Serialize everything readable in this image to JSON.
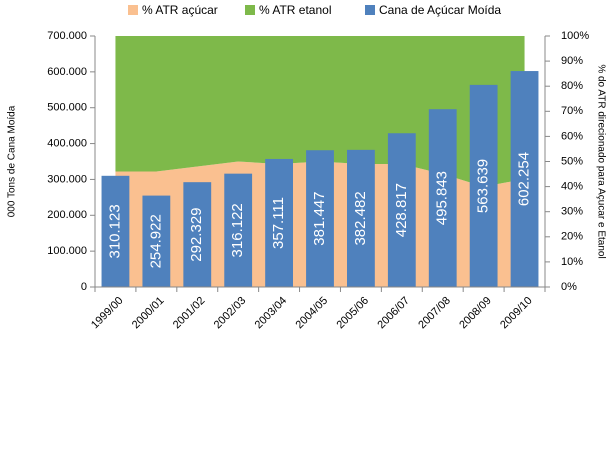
{
  "chart_data": {
    "type": "combo",
    "categories": [
      "1999/00",
      "2000/01",
      "2001/02",
      "2002/03",
      "2003/04",
      "2004/05",
      "2005/06",
      "2006/07",
      "2007/08",
      "2008/09",
      "2009/10"
    ],
    "y_label": "000 Tons de Cana Moída",
    "y2_label": "% do ATR direcionado para  Açucar e Etanol",
    "ylim": [
      0,
      700000
    ],
    "yticks": [
      {
        "value": 0,
        "label": "0"
      },
      {
        "value": 100000,
        "label": "100.000"
      },
      {
        "value": 200000,
        "label": "200.000"
      },
      {
        "value": 300000,
        "label": "300.000"
      },
      {
        "value": 400000,
        "label": "400.000"
      },
      {
        "value": 500000,
        "label": "500.000"
      },
      {
        "value": 600000,
        "label": "600.000"
      },
      {
        "value": 700000,
        "label": "700.000"
      }
    ],
    "y2lim": [
      0,
      100
    ],
    "y2ticks": [
      {
        "value": 0,
        "label": "0%"
      },
      {
        "value": 10,
        "label": "10%"
      },
      {
        "value": 20,
        "label": "20%"
      },
      {
        "value": 30,
        "label": "30%"
      },
      {
        "value": 40,
        "label": "40%"
      },
      {
        "value": 50,
        "label": "50%"
      },
      {
        "value": 60,
        "label": "60%"
      },
      {
        "value": 70,
        "label": "70%"
      },
      {
        "value": 80,
        "label": "80%"
      },
      {
        "value": 90,
        "label": "90%"
      },
      {
        "value": 100,
        "label": "100%"
      }
    ],
    "series": [
      {
        "name": "% ATR açúcar",
        "type": "area",
        "axis": "y2",
        "color": "#fac090",
        "values": [
          46,
          46,
          48,
          50,
          49,
          50,
          49,
          49,
          45,
          40,
          43
        ]
      },
      {
        "name": "% ATR etanol",
        "type": "area",
        "axis": "y2",
        "color": "#7eb94a",
        "values": [
          54,
          54,
          52,
          50,
          51,
          50,
          51,
          51,
          55,
          60,
          57
        ]
      },
      {
        "name": "Cana de Açúcar Moída",
        "type": "bar",
        "color": "#4f81bd",
        "values": [
          310123,
          254922,
          292329,
          316122,
          357111,
          381447,
          382482,
          428817,
          495843,
          563639,
          602254
        ],
        "value_labels": [
          "310.123",
          "254.922",
          "292.329",
          "316.122",
          "357.111",
          "381.447",
          "382.482",
          "428.817",
          "495.843",
          "563.639",
          "602.254"
        ]
      }
    ]
  }
}
